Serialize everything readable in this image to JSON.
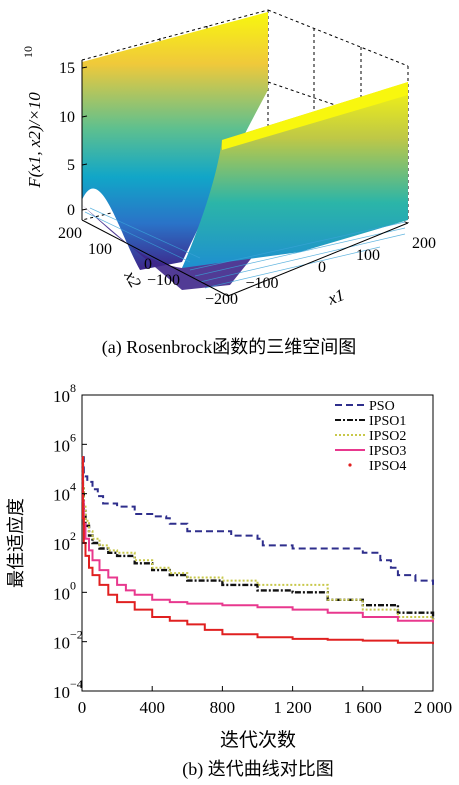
{
  "chart_data": [
    {
      "type": "surface",
      "caption": "(a) Rosenbrock函数的三维空间图",
      "zlabel": "F(x1, x2)/×10",
      "zlabel_exponent": "10",
      "xlabel": "x1",
      "ylabel": "x2",
      "xlim": [
        -200,
        200
      ],
      "ylim": [
        -200,
        200
      ],
      "zlim": [
        0,
        16
      ],
      "x_ticks": [
        "−100",
        "0",
        "100",
        "200"
      ],
      "y_ticks": [
        "200",
        "100",
        "0",
        "−100",
        "−200"
      ],
      "z_ticks": [
        "0",
        "5",
        "10",
        "15"
      ],
      "colormap": [
        "#3e268a",
        "#2a73c8",
        "#11a6c8",
        "#5fc08e",
        "#f0c93a",
        "#f8f70e"
      ]
    },
    {
      "type": "line",
      "caption": "(b) 迭代曲线对比图",
      "xlabel": "迭代次数",
      "ylabel": "最佳适应度",
      "yscale": "log",
      "xlim": [
        0,
        2000
      ],
      "ylim": [
        0.0001,
        100000000
      ],
      "x_ticks": [
        "0",
        "400",
        "800",
        "1 200",
        "1 600",
        "2 000"
      ],
      "y_ticks": [
        {
          "base": "10",
          "exp": "8",
          "value": 100000000
        },
        {
          "base": "10",
          "exp": "6",
          "value": 1000000
        },
        {
          "base": "10",
          "exp": "4",
          "value": 10000
        },
        {
          "base": "10",
          "exp": "2",
          "value": 100
        },
        {
          "base": "10",
          "exp": "0",
          "value": 1
        },
        {
          "base": "10",
          "exp": "−2",
          "value": 0.01
        },
        {
          "base": "10",
          "exp": "−4",
          "value": 0.0001
        }
      ],
      "legend_position": "top-right",
      "series": [
        {
          "name": "PSO",
          "color": "#2e2e8c",
          "style": "dashed",
          "x": [
            0,
            10,
            30,
            60,
            90,
            120,
            200,
            270,
            300,
            400,
            480,
            500,
            560,
            600,
            800,
            850,
            900,
            1000,
            1030,
            1100,
            1200,
            1300,
            1400,
            1600,
            1700,
            1760,
            1800,
            1900,
            2000
          ],
          "y": [
            300000,
            50000,
            30000,
            15000,
            8000,
            4000,
            3000,
            3000,
            1500,
            1200,
            1000,
            600,
            600,
            300,
            300,
            200,
            200,
            150,
            80,
            80,
            60,
            60,
            60,
            40,
            20,
            10,
            5,
            3,
            2
          ]
        },
        {
          "name": "IPSO1",
          "color": "#111111",
          "style": "dashdot",
          "x": [
            0,
            5,
            10,
            20,
            40,
            60,
            100,
            150,
            200,
            300,
            400,
            500,
            600,
            800,
            1000,
            1200,
            1400,
            1600,
            1800,
            2000
          ],
          "y": [
            300000,
            20000,
            2000,
            500,
            200,
            100,
            60,
            40,
            30,
            15,
            8,
            5,
            3,
            2,
            1.2,
            1,
            0.5,
            0.3,
            0.15,
            0.08
          ]
        },
        {
          "name": "IPSO2",
          "color": "#c8c84a",
          "style": "dotted",
          "x": [
            0,
            5,
            10,
            20,
            40,
            60,
            100,
            150,
            200,
            300,
            400,
            500,
            600,
            800,
            1000,
            1200,
            1400,
            1600,
            1800,
            2000
          ],
          "y": [
            300000,
            20000,
            3000,
            800,
            300,
            150,
            80,
            50,
            40,
            20,
            10,
            6,
            4,
            3,
            2,
            2,
            0.5,
            0.2,
            0.1,
            0.06
          ]
        },
        {
          "name": "IPSO3",
          "color": "#e8388e",
          "style": "solid",
          "x": [
            0,
            5,
            10,
            20,
            40,
            60,
            100,
            150,
            200,
            250,
            300,
            400,
            500,
            600,
            800,
            1000,
            1200,
            1400,
            1600,
            1800,
            2000
          ],
          "y": [
            300000,
            5000,
            600,
            150,
            50,
            20,
            8,
            4,
            2,
            1.2,
            0.8,
            0.5,
            0.4,
            0.35,
            0.3,
            0.25,
            0.2,
            0.15,
            0.1,
            0.07,
            0.06
          ]
        },
        {
          "name": "IPSO4",
          "color": "#e02020",
          "style": "solid",
          "x": [
            0,
            5,
            10,
            20,
            40,
            60,
            100,
            150,
            200,
            300,
            400,
            500,
            600,
            700,
            800,
            1000,
            1200,
            1400,
            1600,
            1800,
            2000
          ],
          "y": [
            300000,
            1000,
            100,
            30,
            10,
            5,
            2,
            0.8,
            0.4,
            0.2,
            0.1,
            0.07,
            0.05,
            0.03,
            0.02,
            0.015,
            0.013,
            0.012,
            0.011,
            0.009,
            0.008
          ]
        }
      ]
    }
  ]
}
